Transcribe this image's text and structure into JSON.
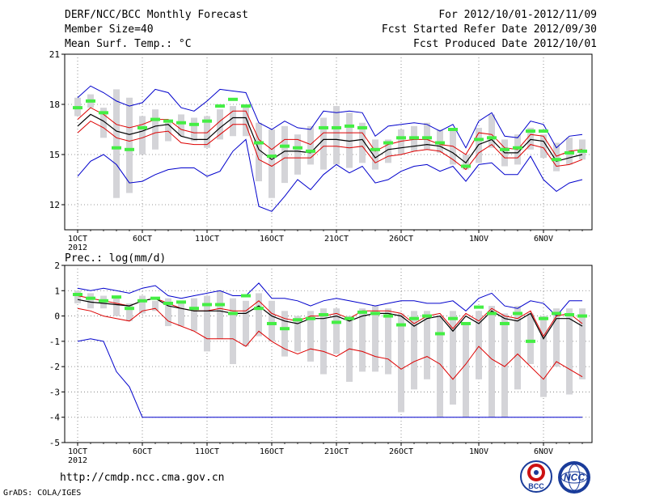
{
  "header": {
    "title": "DERF/NCC/BCC Monthly Forecast",
    "member_size": "Member Size=40",
    "variable": "Mean Surf. Temp.: °C",
    "period": "For 2012/10/01-2012/11/09",
    "started": "Fcst Started Refer Date 2012/09/30",
    "produced": "Fcst Produced Date 2012/10/01"
  },
  "footer": {
    "url": "http://cmdp.ncc.cma.gov.cn",
    "credit": "GrADS: COLA/IGES",
    "logo_left_text": "BCC",
    "logo_right_text": "NCC"
  },
  "colors": {
    "mean": "#000000",
    "spread": "#dd0000",
    "extremes": "#0000cc",
    "box": "#d4d4d8",
    "marker": "#44ee44"
  },
  "chart_data": [
    {
      "type": "line",
      "title": "Mean Surf. Temp.: °C",
      "xlabel": "",
      "ylabel": "",
      "ylim": [
        10.5,
        21
      ],
      "yticks": [
        12,
        15,
        18,
        21
      ],
      "xticks": [
        {
          "day": 1,
          "label": "1OCT"
        },
        {
          "day": 6,
          "label": "6OCT"
        },
        {
          "day": 11,
          "label": "11OCT"
        },
        {
          "day": 16,
          "label": "16OCT"
        },
        {
          "day": 21,
          "label": "21OCT"
        },
        {
          "day": 26,
          "label": "26OCT"
        },
        {
          "day": 32,
          "label": "1NOV"
        },
        {
          "day": 37,
          "label": "6NOV"
        }
      ],
      "year_label": "2012",
      "days": [
        1,
        2,
        3,
        4,
        5,
        6,
        7,
        8,
        9,
        10,
        11,
        12,
        13,
        14,
        15,
        16,
        17,
        18,
        19,
        20,
        21,
        22,
        23,
        24,
        25,
        26,
        27,
        28,
        29,
        30,
        31,
        32,
        33,
        34,
        35,
        36,
        37,
        38,
        39,
        40
      ],
      "series": [
        {
          "name": "ensemble max",
          "values": [
            18.4,
            19.1,
            18.7,
            18.2,
            17.9,
            18.1,
            18.9,
            18.7,
            17.8,
            17.6,
            18.2,
            18.9,
            18.8,
            18.7,
            16.9,
            16.5,
            17.0,
            16.6,
            16.5,
            17.6,
            17.5,
            17.6,
            17.5,
            16.1,
            16.7,
            16.8,
            16.9,
            16.8,
            16.4,
            16.8,
            15.4,
            17.0,
            17.5,
            16.1,
            16.0,
            17.0,
            16.8,
            15.4,
            16.1,
            16.2
          ]
        },
        {
          "name": "mean + sd",
          "values": [
            17.1,
            17.8,
            17.4,
            16.8,
            16.6,
            16.8,
            17.1,
            17.1,
            16.5,
            16.3,
            16.3,
            17.0,
            17.6,
            17.6,
            15.9,
            15.3,
            15.9,
            15.9,
            15.6,
            16.3,
            16.3,
            16.3,
            16.3,
            15.2,
            15.6,
            15.8,
            15.9,
            15.9,
            15.6,
            15.5,
            15.0,
            16.3,
            16.2,
            15.4,
            15.3,
            16.2,
            16.1,
            14.9,
            15.2,
            15.3
          ]
        },
        {
          "name": "ensemble mean",
          "values": [
            16.7,
            17.4,
            17.0,
            16.4,
            16.2,
            16.4,
            16.7,
            16.8,
            16.1,
            15.9,
            15.9,
            16.6,
            17.2,
            17.2,
            15.3,
            14.7,
            15.2,
            15.2,
            15.1,
            15.9,
            15.9,
            15.8,
            15.9,
            14.8,
            15.3,
            15.4,
            15.5,
            15.6,
            15.5,
            15.1,
            14.5,
            15.6,
            15.9,
            15.1,
            15.1,
            15.9,
            15.8,
            14.6,
            14.8,
            15.0
          ]
        },
        {
          "name": "mean - sd",
          "values": [
            16.3,
            17.0,
            16.6,
            16.0,
            15.8,
            16.0,
            16.3,
            16.4,
            15.7,
            15.6,
            15.6,
            16.2,
            16.8,
            16.8,
            14.7,
            14.3,
            14.8,
            14.8,
            14.8,
            15.5,
            15.5,
            15.4,
            15.5,
            14.5,
            14.9,
            15.0,
            15.2,
            15.3,
            15.2,
            14.7,
            14.1,
            15.1,
            15.6,
            14.8,
            14.8,
            15.6,
            15.4,
            14.3,
            14.4,
            14.7
          ]
        },
        {
          "name": "ensemble min",
          "values": [
            13.7,
            14.6,
            15.0,
            14.4,
            13.3,
            13.4,
            13.8,
            14.1,
            14.2,
            14.2,
            13.7,
            14.0,
            15.2,
            15.9,
            11.9,
            11.6,
            12.5,
            13.5,
            12.9,
            13.8,
            14.4,
            13.9,
            14.3,
            13.3,
            13.5,
            14.0,
            14.3,
            14.4,
            14.0,
            14.3,
            13.4,
            14.4,
            14.5,
            13.8,
            13.8,
            14.9,
            13.5,
            12.8,
            13.3,
            13.5
          ]
        }
      ],
      "spread_bars": [
        [
          17.3,
          18.4
        ],
        [
          17.8,
          18.6
        ],
        [
          16.0,
          17.8
        ],
        [
          12.4,
          18.9
        ],
        [
          12.7,
          18.4
        ],
        [
          15.0,
          17.3
        ],
        [
          15.3,
          17.7
        ],
        [
          15.8,
          16.9
        ],
        [
          16.1,
          17.4
        ],
        [
          15.8,
          17.2
        ],
        [
          15.4,
          17.3
        ],
        [
          15.9,
          17.7
        ],
        [
          16.1,
          17.9
        ],
        [
          16.1,
          18.0
        ],
        [
          13.4,
          16.9
        ],
        [
          12.4,
          16.5
        ],
        [
          13.3,
          16.7
        ],
        [
          13.8,
          16.2
        ],
        [
          14.4,
          16.7
        ],
        [
          14.1,
          17.2
        ],
        [
          14.4,
          17.9
        ],
        [
          14.2,
          17.5
        ],
        [
          14.5,
          16.9
        ],
        [
          14.1,
          15.9
        ],
        [
          14.5,
          15.9
        ],
        [
          15.0,
          16.5
        ],
        [
          15.2,
          16.7
        ],
        [
          15.3,
          16.9
        ],
        [
          15.1,
          16.5
        ],
        [
          14.4,
          16.5
        ],
        [
          14.1,
          15.0
        ],
        [
          14.5,
          16.6
        ],
        [
          15.4,
          17.4
        ],
        [
          14.3,
          15.9
        ],
        [
          14.4,
          16.2
        ],
        [
          15.3,
          16.6
        ],
        [
          14.8,
          16.2
        ],
        [
          14.0,
          15.7
        ],
        [
          14.4,
          16.0
        ],
        [
          14.7,
          15.9
        ]
      ],
      "markers": [
        17.8,
        18.2,
        17.5,
        15.4,
        15.3,
        16.6,
        17.1,
        17.0,
        16.9,
        16.8,
        17.0,
        17.9,
        18.3,
        17.9,
        15.7,
        14.9,
        15.5,
        15.4,
        15.2,
        16.6,
        16.6,
        16.7,
        16.6,
        15.3,
        15.7,
        16.0,
        16.0,
        16.0,
        15.7,
        16.5,
        14.3,
        15.9,
        16.0,
        15.3,
        15.4,
        16.4,
        16.4,
        14.7,
        15.1,
        15.2
      ]
    },
    {
      "type": "line",
      "title": "Prec.: log(mm/d)",
      "xlabel": "",
      "ylabel": "",
      "ylim": [
        -5,
        2
      ],
      "yticks": [
        -5,
        -4,
        -3,
        -2,
        -1,
        0,
        1,
        2
      ],
      "xticks": [
        {
          "day": 1,
          "label": "1OCT"
        },
        {
          "day": 6,
          "label": "6OCT"
        },
        {
          "day": 11,
          "label": "11OCT"
        },
        {
          "day": 16,
          "label": "16OCT"
        },
        {
          "day": 21,
          "label": "21OCT"
        },
        {
          "day": 26,
          "label": "26OCT"
        },
        {
          "day": 32,
          "label": "1NOV"
        },
        {
          "day": 37,
          "label": "6NOV"
        }
      ],
      "year_label": "2012",
      "days": [
        1,
        2,
        3,
        4,
        5,
        6,
        7,
        8,
        9,
        10,
        11,
        12,
        13,
        14,
        15,
        16,
        17,
        18,
        19,
        20,
        21,
        22,
        23,
        24,
        25,
        26,
        27,
        28,
        29,
        30,
        31,
        32,
        33,
        34,
        35,
        36,
        37,
        38,
        39,
        40
      ],
      "series": [
        {
          "name": "ensemble max",
          "values": [
            1.1,
            1.0,
            1.1,
            1.0,
            0.9,
            1.1,
            1.2,
            0.8,
            0.7,
            0.8,
            0.9,
            1.0,
            0.8,
            0.8,
            1.3,
            0.7,
            0.7,
            0.6,
            0.4,
            0.6,
            0.7,
            0.6,
            0.5,
            0.4,
            0.5,
            0.6,
            0.6,
            0.5,
            0.5,
            0.6,
            0.2,
            0.7,
            0.9,
            0.4,
            0.3,
            0.6,
            0.5,
            0.0,
            0.6,
            0.6
          ]
        },
        {
          "name": "mean + sd",
          "values": [
            0.8,
            0.7,
            0.6,
            0.5,
            0.4,
            0.6,
            0.7,
            0.5,
            0.3,
            0.2,
            0.2,
            0.3,
            0.2,
            0.2,
            0.6,
            0.1,
            -0.1,
            -0.2,
            0.0,
            0.0,
            0.1,
            -0.1,
            0.2,
            0.2,
            0.2,
            0.1,
            -0.3,
            0.0,
            0.1,
            -0.5,
            0.1,
            -0.2,
            0.3,
            0.0,
            -0.1,
            0.2,
            -0.8,
            0.0,
            0.1,
            -0.3
          ]
        },
        {
          "name": "ensemble mean",
          "values": [
            0.65,
            0.55,
            0.5,
            0.45,
            0.4,
            0.6,
            0.7,
            0.4,
            0.3,
            0.2,
            0.2,
            0.2,
            0.1,
            0.1,
            0.4,
            0.0,
            -0.2,
            -0.3,
            -0.1,
            -0.1,
            0.0,
            -0.2,
            0.0,
            0.1,
            0.1,
            0.0,
            -0.4,
            -0.1,
            0.0,
            -0.6,
            0.0,
            -0.3,
            0.2,
            -0.1,
            -0.2,
            0.1,
            -0.9,
            -0.1,
            -0.1,
            -0.4
          ]
        },
        {
          "name": "mean - sd",
          "values": [
            0.3,
            0.2,
            0.0,
            -0.1,
            -0.2,
            0.2,
            0.3,
            -0.2,
            -0.4,
            -0.6,
            -0.9,
            -0.9,
            -0.9,
            -1.2,
            -0.6,
            -1.0,
            -1.3,
            -1.5,
            -1.3,
            -1.4,
            -1.6,
            -1.3,
            -1.4,
            -1.6,
            -1.7,
            -2.1,
            -1.8,
            -1.6,
            -1.9,
            -2.5,
            -1.9,
            -1.2,
            -1.7,
            -2.0,
            -1.5,
            -2.0,
            -2.5,
            -1.8,
            -2.1,
            -2.4
          ]
        },
        {
          "name": "ensemble min",
          "values": [
            -1.0,
            -0.9,
            -1.0,
            -2.2,
            -2.8,
            -4.0,
            -4.0,
            -4.0,
            -4.0,
            -4.0,
            -4.0,
            -4.0,
            -4.0,
            -4.0,
            -4.0,
            -4.0,
            -4.0,
            -4.0,
            -4.0,
            -4.0,
            -4.0,
            -4.0,
            -4.0,
            -4.0,
            -4.0,
            -4.0,
            -4.0,
            -4.0,
            -4.0,
            -4.0,
            -4.0,
            -4.0,
            -4.0,
            -4.0,
            -4.0,
            -4.0,
            -4.0,
            -4.0,
            -4.0,
            -4.0
          ]
        }
      ],
      "spread_bars": [
        [
          0.5,
          1.0
        ],
        [
          0.3,
          0.9
        ],
        [
          0.3,
          0.8
        ],
        [
          0.0,
          0.7
        ],
        [
          -0.2,
          0.5
        ],
        [
          0.1,
          0.8
        ],
        [
          0.2,
          0.6
        ],
        [
          -0.4,
          0.7
        ],
        [
          -0.4,
          0.6
        ],
        [
          -0.6,
          0.7
        ],
        [
          -1.4,
          0.8
        ],
        [
          -0.9,
          1.0
        ],
        [
          -1.9,
          0.7
        ],
        [
          -1.2,
          0.6
        ],
        [
          -0.8,
          0.9
        ],
        [
          -1.0,
          0.6
        ],
        [
          -1.6,
          0.2
        ],
        [
          -1.4,
          0.0
        ],
        [
          -1.8,
          0.2
        ],
        [
          -2.3,
          0.3
        ],
        [
          -1.5,
          0.3
        ],
        [
          -2.6,
          0.0
        ],
        [
          -2.2,
          0.3
        ],
        [
          -2.2,
          0.4
        ],
        [
          -2.3,
          0.3
        ],
        [
          -3.8,
          0.1
        ],
        [
          -2.9,
          0.2
        ],
        [
          -2.5,
          0.2
        ],
        [
          -4.0,
          0.0
        ],
        [
          -3.5,
          0.2
        ],
        [
          -4.0,
          -0.3
        ],
        [
          -2.5,
          0.2
        ],
        [
          -4.0,
          0.4
        ],
        [
          -4.0,
          0.1
        ],
        [
          -2.9,
          0.4
        ],
        [
          -1.9,
          0.1
        ],
        [
          -3.2,
          0.0
        ],
        [
          -2.0,
          0.3
        ],
        [
          -3.1,
          0.3
        ],
        [
          -2.5,
          0.3
        ]
      ],
      "markers": [
        0.85,
        0.7,
        0.6,
        0.75,
        0.3,
        0.6,
        0.7,
        0.5,
        0.55,
        0.3,
        0.45,
        0.45,
        0.1,
        0.8,
        0.3,
        -0.3,
        -0.5,
        -0.15,
        -0.1,
        0.05,
        -0.25,
        -0.1,
        0.15,
        0.1,
        0.0,
        -0.35,
        -0.1,
        0.0,
        -0.7,
        -0.1,
        -0.3,
        0.35,
        0.1,
        -0.3,
        0.1,
        -1.0,
        -0.1,
        0.1,
        0.05,
        0.0
      ]
    }
  ]
}
